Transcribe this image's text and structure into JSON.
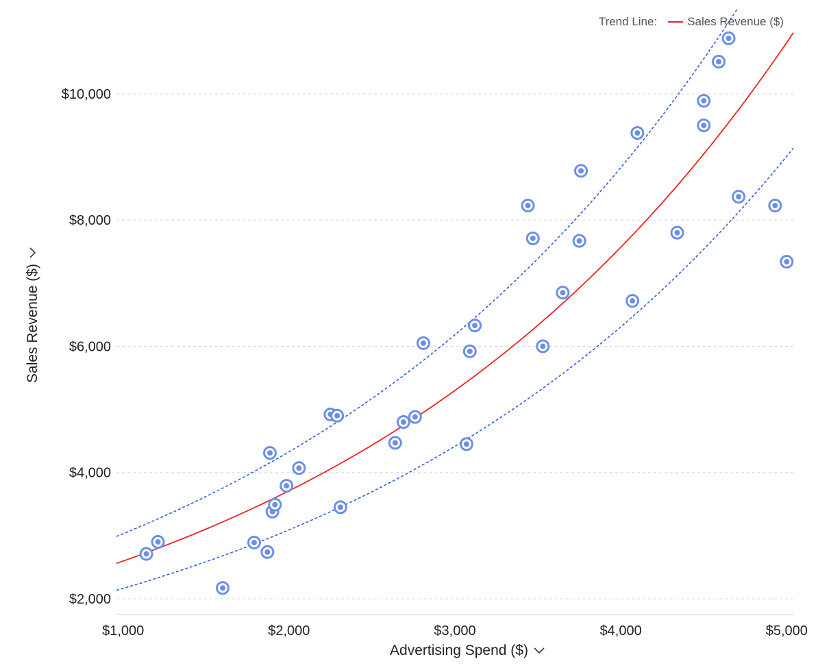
{
  "legend": {
    "title": "Trend Line:",
    "label": "Sales Revenue ($)"
  },
  "colors": {
    "point": "#6b8fe8",
    "trend": "#ee2222",
    "band": "#2b5fd9",
    "grid": "#d6d6d6",
    "axis": "#cccccc"
  },
  "icons": {
    "x_dropdown": "chevron-down-icon",
    "y_dropdown": "chevron-down-icon"
  },
  "chart_data": {
    "type": "scatter",
    "xlabel": "Advertising Spend ($)",
    "ylabel": "Sales Revenue ($)",
    "xlim": [
      960,
      5040
    ],
    "ylim": [
      1750,
      11400
    ],
    "x_ticks": [
      1000,
      2000,
      3000,
      4000,
      5000
    ],
    "x_tick_labels": [
      "$1,000",
      "$2,000",
      "$3,000",
      "$4,000",
      "$5,000"
    ],
    "y_ticks": [
      2000,
      4000,
      6000,
      8000,
      10000
    ],
    "y_tick_labels": [
      "$2,000",
      "$4,000",
      "$6,000",
      "$8,000",
      "$10,000"
    ],
    "grid": "horizontal dashed",
    "legend_position": "top-right",
    "points": [
      {
        "x": 1140,
        "y": 2710
      },
      {
        "x": 1210,
        "y": 2900
      },
      {
        "x": 1600,
        "y": 2170
      },
      {
        "x": 1790,
        "y": 2890
      },
      {
        "x": 1870,
        "y": 2740
      },
      {
        "x": 1885,
        "y": 4310
      },
      {
        "x": 1900,
        "y": 3380
      },
      {
        "x": 1915,
        "y": 3490
      },
      {
        "x": 1985,
        "y": 3790
      },
      {
        "x": 2060,
        "y": 4070
      },
      {
        "x": 2250,
        "y": 4920
      },
      {
        "x": 2290,
        "y": 4900
      },
      {
        "x": 2310,
        "y": 3450
      },
      {
        "x": 2640,
        "y": 4470
      },
      {
        "x": 2690,
        "y": 4800
      },
      {
        "x": 2760,
        "y": 4880
      },
      {
        "x": 2810,
        "y": 6050
      },
      {
        "x": 3070,
        "y": 4450
      },
      {
        "x": 3090,
        "y": 5920
      },
      {
        "x": 3120,
        "y": 6330
      },
      {
        "x": 3440,
        "y": 8230
      },
      {
        "x": 3470,
        "y": 7710
      },
      {
        "x": 3530,
        "y": 6000
      },
      {
        "x": 3650,
        "y": 6850
      },
      {
        "x": 3750,
        "y": 7670
      },
      {
        "x": 3760,
        "y": 8780
      },
      {
        "x": 4070,
        "y": 6720
      },
      {
        "x": 4100,
        "y": 9380
      },
      {
        "x": 4340,
        "y": 7800
      },
      {
        "x": 4500,
        "y": 9500
      },
      {
        "x": 4500,
        "y": 9890
      },
      {
        "x": 4590,
        "y": 10510
      },
      {
        "x": 4650,
        "y": 10880
      },
      {
        "x": 4710,
        "y": 8370
      },
      {
        "x": 4930,
        "y": 8230
      },
      {
        "x": 5000,
        "y": 7340
      }
    ],
    "trend": {
      "name": "Sales Revenue ($)",
      "type": "exponential",
      "a": 1818,
      "b": 0.0003566,
      "band_lower_factor": 0.8333,
      "band_upper_factor": 1.1667,
      "band_dashed": true
    }
  }
}
